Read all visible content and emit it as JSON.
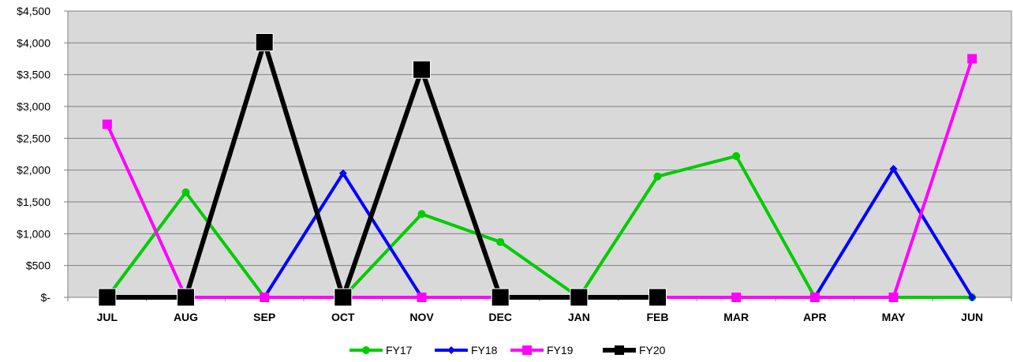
{
  "chart_data": {
    "type": "line",
    "title": "",
    "xlabel": "",
    "ylabel": "",
    "categories": [
      "JUL",
      "AUG",
      "SEP",
      "OCT",
      "NOV",
      "DEC",
      "JAN",
      "FEB",
      "MAR",
      "APR",
      "MAY",
      "JUN"
    ],
    "y_ticks": [
      0,
      500,
      1000,
      1500,
      2000,
      2500,
      3000,
      3500,
      4000,
      4500
    ],
    "y_tick_labels": [
      "$-",
      "$500",
      "$1,000",
      "$1,500",
      "$2,000",
      "$2,500",
      "$3,000",
      "$3,500",
      "$4,000",
      "$4,500"
    ],
    "ylim": [
      0,
      4500
    ],
    "grid": true,
    "legend_position": "bottom-center",
    "plot_background": "#d9d9d9",
    "series": [
      {
        "name": "FY17",
        "color": "#00cc00",
        "marker": "circle",
        "values": [
          0,
          1650,
          0,
          0,
          1310,
          870,
          0,
          1900,
          2220,
          0,
          0,
          0
        ]
      },
      {
        "name": "FY18",
        "color": "#0000ff",
        "marker": "diamond",
        "values": [
          0,
          0,
          0,
          1950,
          0,
          0,
          0,
          0,
          0,
          0,
          2020,
          0
        ]
      },
      {
        "name": "FY19",
        "color": "#ff00ff",
        "marker": "square",
        "values": [
          2720,
          0,
          0,
          0,
          0,
          0,
          0,
          0,
          0,
          0,
          0,
          3750
        ]
      },
      {
        "name": "FY20",
        "color": "#000000",
        "marker": "big-square",
        "values": [
          0,
          0,
          4010,
          0,
          3580,
          0,
          0,
          0,
          null,
          null,
          null,
          null
        ]
      }
    ]
  }
}
